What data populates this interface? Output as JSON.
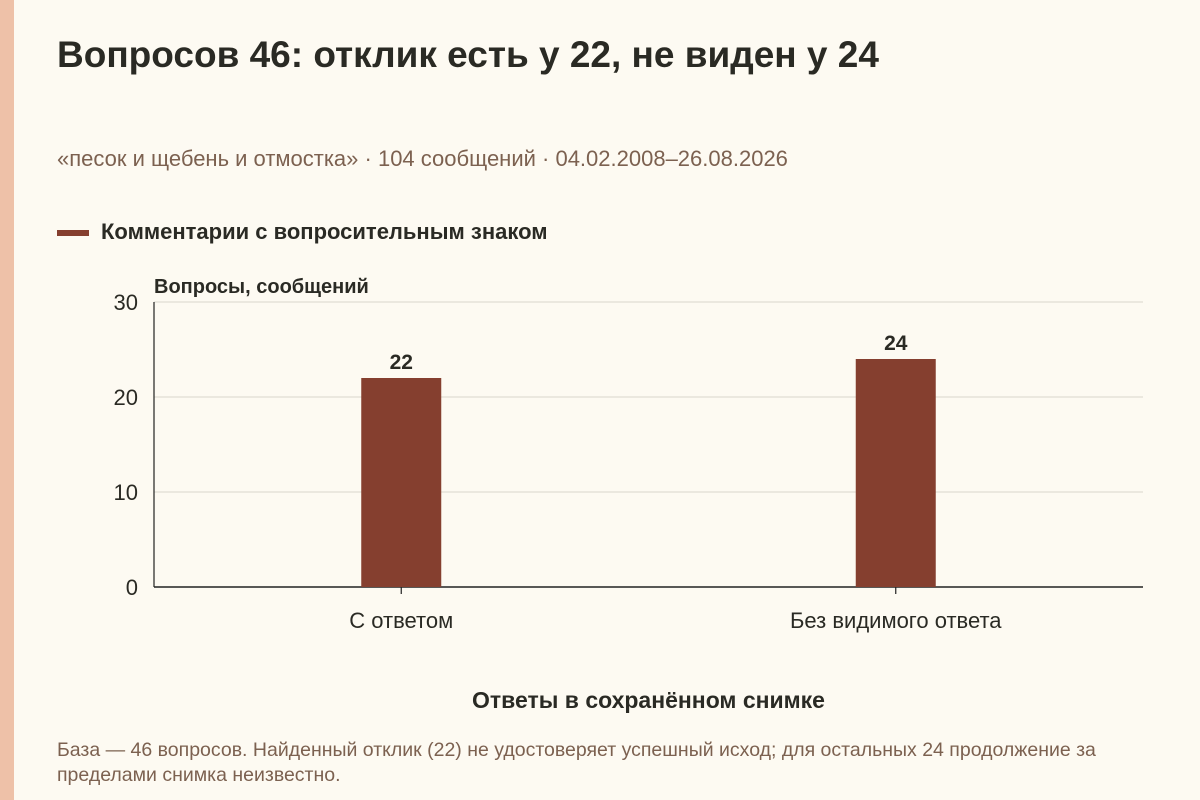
{
  "title": "Вопросов 46: отклик есть у 22, не виден у 24",
  "subtitle": "«песок и щебень и отмостка» · 104 сообщений · 04.02.2008–26.08.2026",
  "note": "База — 46 вопросов. Найденный отклик (22) не удостоверяет успешный исход; для остальных 24 продолжение за пределами снимка неизвестно.",
  "colors": {
    "bar": "#853f2f",
    "grid": "#d9d6cc",
    "axis": "#222222",
    "text": "#2a2a24",
    "muted": "#7c6150"
  },
  "chart_data": {
    "type": "bar",
    "categories": [
      "С ответом",
      "Без видимого ответа"
    ],
    "series": [
      {
        "name": "Комментарии с вопросительным знаком",
        "values": [
          22,
          24
        ]
      }
    ],
    "xlabel": "Ответы в сохранённом снимке",
    "ylabel": "Вопросы, сообщений",
    "ylim": [
      0,
      30
    ],
    "yticks": [
      0,
      10,
      20,
      30
    ],
    "data_labels": true,
    "grid": true,
    "legend": "top-left"
  }
}
